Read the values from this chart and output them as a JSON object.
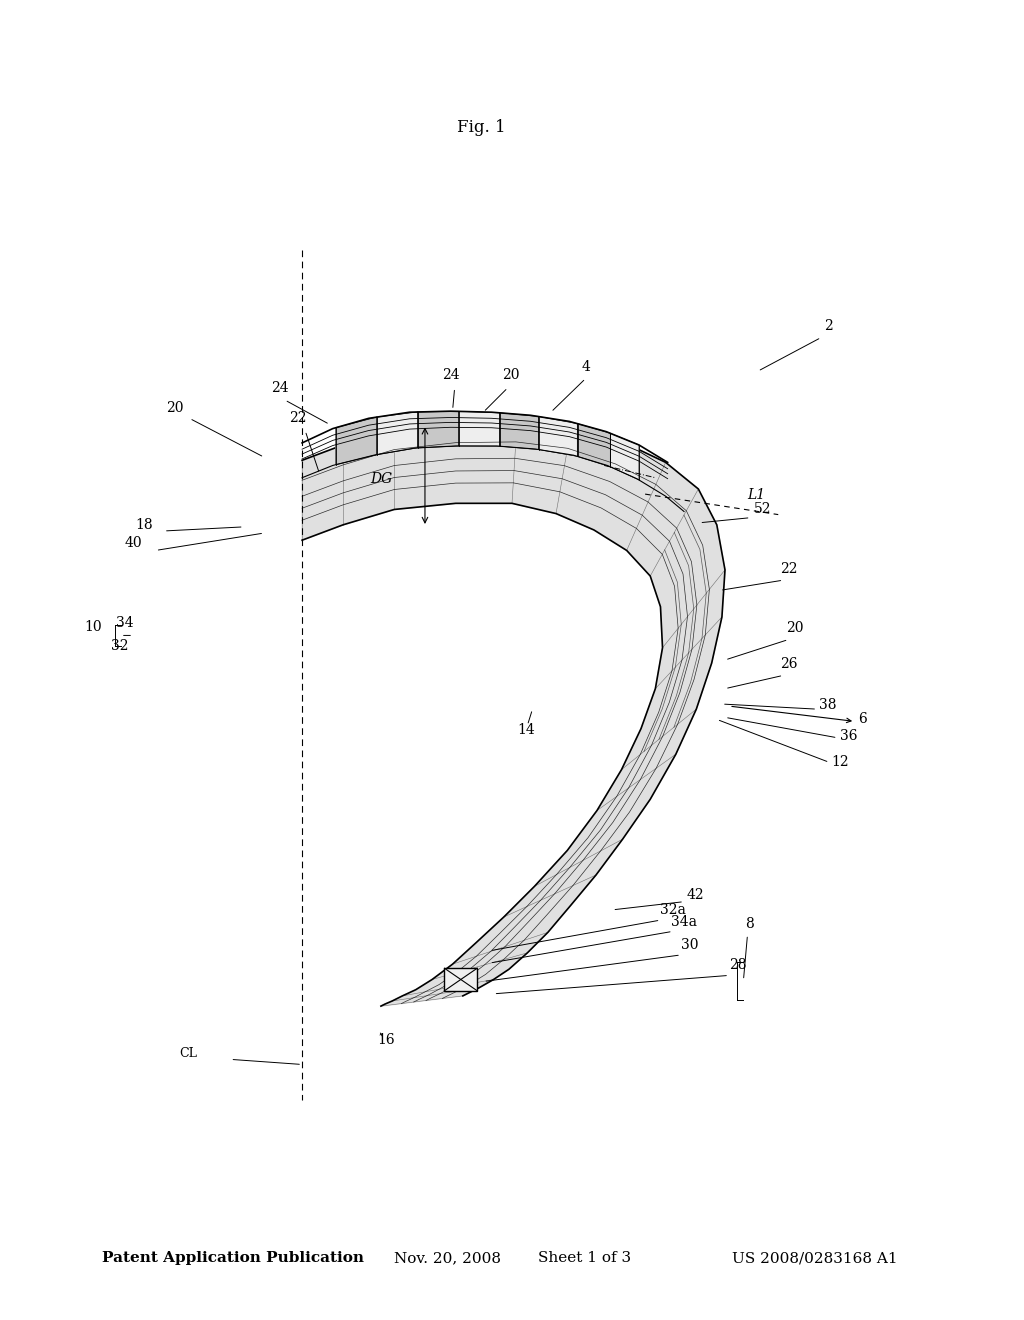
{
  "title": "Patent Application Publication",
  "date": "Nov. 20, 2008",
  "sheet": "Sheet 1 of 3",
  "patent_num": "US 2008/0283168 A1",
  "fig_label": "Fig. 1",
  "background": "#ffffff",
  "line_color": "#000000",
  "header_fontsize": 11,
  "label_fontsize": 10
}
